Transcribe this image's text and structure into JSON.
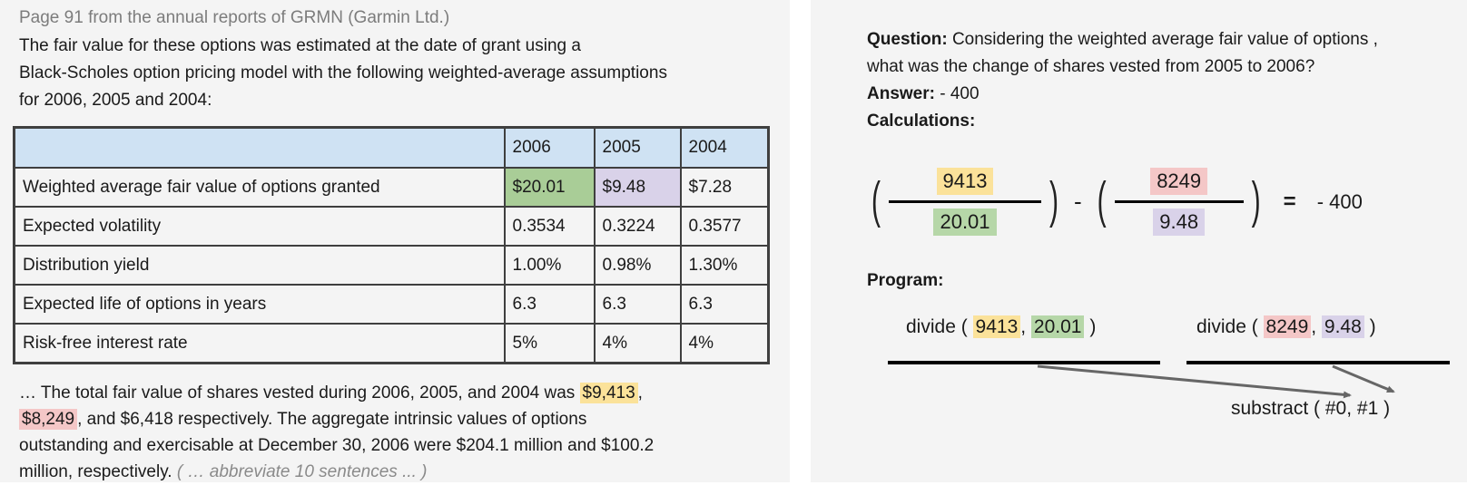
{
  "colors": {
    "panel_bg": "#f4f4f4",
    "header_blue": "#cfe2f3",
    "yellow": "#fbe29a",
    "green": "#b6d7a8",
    "green_cell": "#a9cd97",
    "pink": "#f4c7c7",
    "purple": "#d9d2e9",
    "muted_text": "#8a8a8a",
    "arrow_gray": "#666666"
  },
  "source_panel": {
    "title": "Page 91 from the annual reports of GRMN (Garmin Ltd.)",
    "intro_lines": [
      "The fair value for these options was estimated at the date of grant using a",
      "Black-Scholes option pricing model with the following weighted-average assumptions",
      "for 2006, 2005 and 2004:"
    ],
    "table": {
      "columns": [
        "",
        "2006",
        "2005",
        "2004"
      ],
      "rows": [
        {
          "label": "Weighted average fair value of options granted",
          "values": [
            {
              "text": "$20.01",
              "hl": "green_cell"
            },
            {
              "text": "$9.48",
              "hl": "purple"
            },
            {
              "text": "$7.28"
            }
          ]
        },
        {
          "label": "Expected volatility",
          "values": [
            {
              "text": "0.3534"
            },
            {
              "text": "0.3224"
            },
            {
              "text": "0.3577"
            }
          ]
        },
        {
          "label": "Distribution yield",
          "values": [
            {
              "text": "1.00%"
            },
            {
              "text": "0.98%"
            },
            {
              "text": "1.30%"
            }
          ]
        },
        {
          "label": "Expected life of options in years",
          "values": [
            {
              "text": "6.3"
            },
            {
              "text": "6.3"
            },
            {
              "text": "6.3"
            }
          ]
        },
        {
          "label": "Risk-free interest rate",
          "values": [
            {
              "text": "5%"
            },
            {
              "text": "4%"
            },
            {
              "text": "4%"
            }
          ]
        }
      ]
    },
    "footer_lines": [
      {
        "segments": [
          {
            "text": "… The total fair value of shares vested during 2006, 2005, and 2004 was "
          },
          {
            "text": "$9,413",
            "hl": "yellow"
          },
          {
            "text": ","
          }
        ]
      },
      {
        "segments": [
          {
            "text": "$8,249",
            "hl": "pink"
          },
          {
            "text": ", and $6,418 respectively. The aggregate intrinsic values of options"
          }
        ]
      },
      {
        "segments": [
          {
            "text": "outstanding and exercisable at December 30, 2006 were $204.1 million and $100.2"
          }
        ]
      },
      {
        "segments": [
          {
            "text": "million, respectively. "
          },
          {
            "text": "( … abbreviate 10 sentences ... )",
            "muted": true
          }
        ]
      }
    ]
  },
  "qa_panel": {
    "question_label": "Question:",
    "question_lines": [
      "Considering the weighted average fair value of options ,",
      "what was the change of shares vested from 2005 to 2006?"
    ],
    "answer_label": "Answer:",
    "answer_value": "- 400",
    "calculations_label": "Calculations:",
    "equation": {
      "paren_open": "(",
      "paren_close": ")",
      "minus": "-",
      "equals": "=",
      "result": "- 400",
      "terms": [
        {
          "numerator": {
            "text": "9413",
            "hl": "yellow"
          },
          "denominator": {
            "text": "20.01",
            "hl": "green"
          }
        },
        {
          "numerator": {
            "text": "8249",
            "hl": "pink"
          },
          "denominator": {
            "text": "9.48",
            "hl": "purple"
          }
        }
      ]
    },
    "program_label": "Program:",
    "program_steps": [
      {
        "segments": [
          {
            "text": "divide ( "
          },
          {
            "text": "9413",
            "hl": "yellow"
          },
          {
            "text": ", "
          },
          {
            "text": "20.01",
            "hl": "green"
          },
          {
            "text": " )"
          }
        ]
      },
      {
        "segments": [
          {
            "text": "divide ( "
          },
          {
            "text": "8249",
            "hl": "pink"
          },
          {
            "text": ", "
          },
          {
            "text": "9.48",
            "hl": "purple"
          },
          {
            "text": " )"
          }
        ]
      }
    ],
    "program_final": "substract ( #0, #1 )"
  }
}
